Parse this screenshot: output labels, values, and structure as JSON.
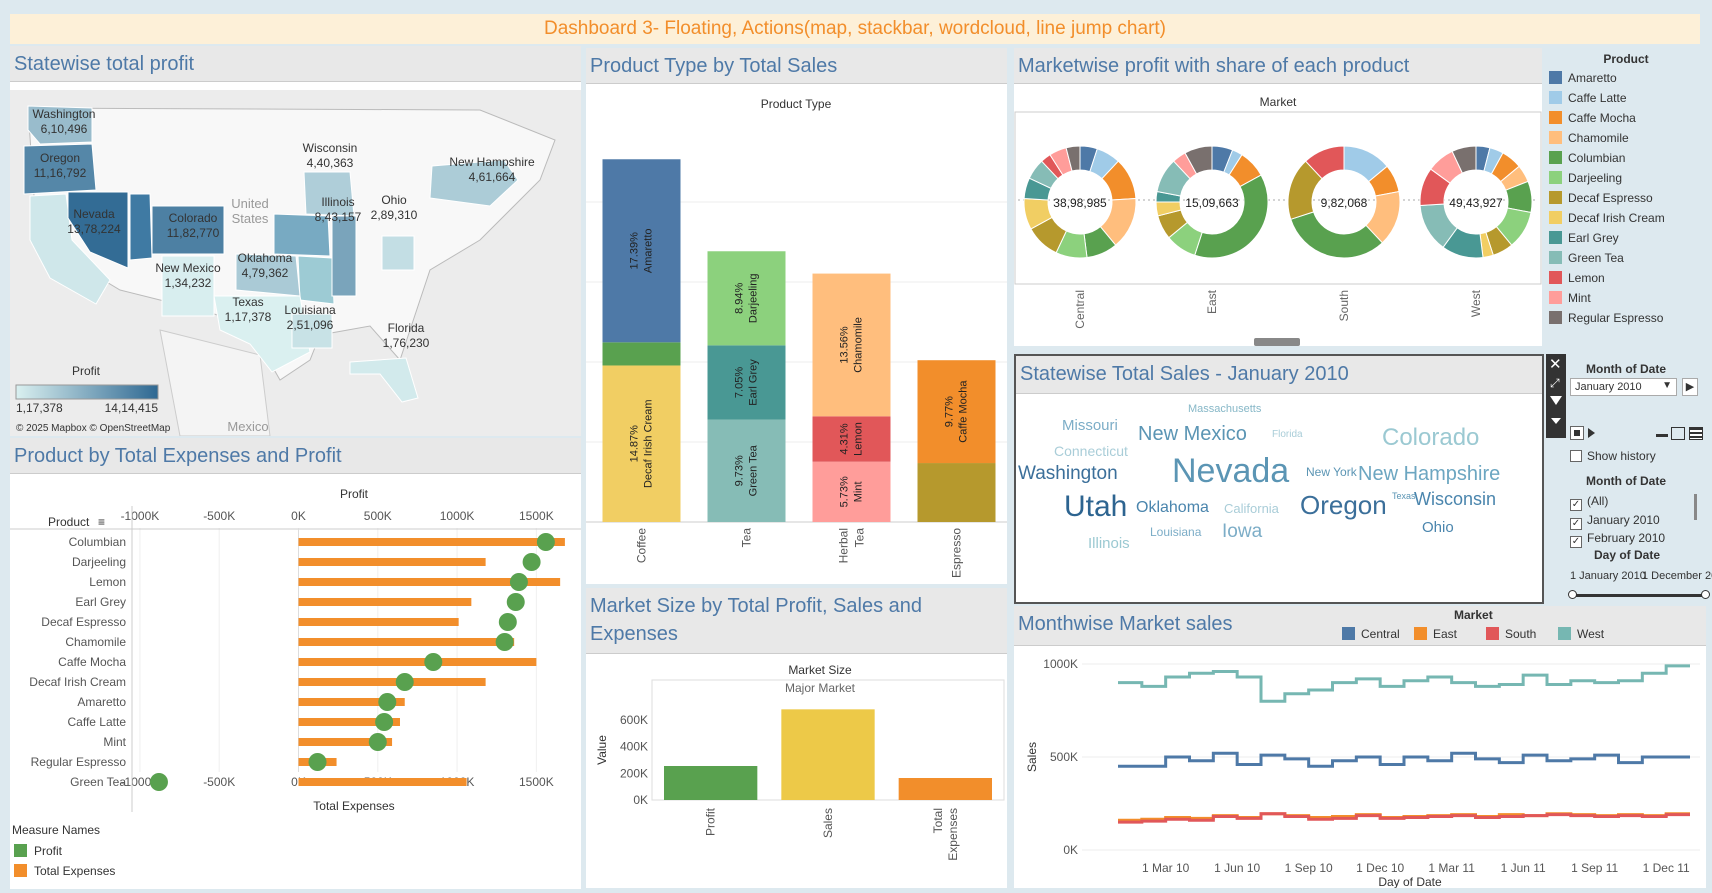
{
  "dashboard": {
    "title": "Dashboard 3- Floating, Actions(map, stackbar, wordcloud, line jump chart)"
  },
  "colors": {
    "Amaretto": "#4e79a7",
    "Caffe Latte": "#a0cbe8",
    "Caffe Mocha": "#f28e2b",
    "Chamomile": "#ffbe7d",
    "Columbian": "#59a14f",
    "Darjeeling": "#8cd17d",
    "Decaf Espresso": "#b6992d",
    "Decaf Irish Cream": "#f1ce63",
    "Earl Grey": "#499894",
    "Green Tea": "#86bcb6",
    "Lemon": "#e15759",
    "Mint": "#ff9d9a",
    "Regular Espresso": "#79706e",
    "Central": "#4e79a7",
    "East": "#f28e2b",
    "South": "#e15759",
    "West": "#76b7b2"
  },
  "map": {
    "title": "Statewise total profit",
    "legend_title": "Profit",
    "legend_min": "1,17,378",
    "legend_max": "14,14,415",
    "copyright": "© 2025 Mapbox © OpenStreetMap",
    "country_labels": [
      "United\nStates",
      "Mexico"
    ],
    "states": [
      {
        "name": "Washington",
        "value": "6,10,496",
        "profit": 610496
      },
      {
        "name": "Oregon",
        "value": "11,16,792",
        "profit": 1116792
      },
      {
        "name": "Nevada",
        "value": "13,78,224",
        "profit": 1378224
      },
      {
        "name": "Colorado",
        "value": "11,82,770",
        "profit": 1182770
      },
      {
        "name": "New Mexico",
        "value": "1,34,232",
        "profit": 134232
      },
      {
        "name": "Oklahoma",
        "value": "4,79,362",
        "profit": 479362
      },
      {
        "name": "Texas",
        "value": "1,17,378",
        "profit": 117378
      },
      {
        "name": "Louisiana",
        "value": "2,51,096",
        "profit": 251096
      },
      {
        "name": "Wisconsin",
        "value": "4,40,363",
        "profit": 440363
      },
      {
        "name": "Illinois",
        "value": "8,43,157",
        "profit": 843157
      },
      {
        "name": "Ohio",
        "value": "2,89,310",
        "profit": 289310
      },
      {
        "name": "New Hampshire",
        "value": "4,61,664",
        "profit": 461664
      },
      {
        "name": "Florida",
        "value": "1,76,230",
        "profit": 176230
      }
    ]
  },
  "chart_data": [
    {
      "id": "product_type",
      "type": "bar",
      "stacked": true,
      "title": "Product Type by Total Sales",
      "header": "Product Type",
      "categories": [
        "Coffee",
        "Tea",
        "Herbal Tea",
        "Espresso"
      ],
      "stacks": [
        {
          "category": "Coffee",
          "segments": [
            {
              "product": "Decaf Irish Cream",
              "share": 14.87,
              "label": "14.87%"
            },
            {
              "product": "Columbian",
              "share": 2.2,
              "label": ""
            },
            {
              "product": "Amaretto",
              "share": 17.39,
              "label": "17.39%"
            }
          ]
        },
        {
          "category": "Tea",
          "segments": [
            {
              "product": "Green Tea",
              "share": 9.73,
              "label": "9.73%"
            },
            {
              "product": "Earl Grey",
              "share": 7.05,
              "label": "7.05%"
            },
            {
              "product": "Darjeeling",
              "share": 8.94,
              "label": "8.94%"
            }
          ]
        },
        {
          "category": "Herbal Tea",
          "segments": [
            {
              "product": "Mint",
              "share": 5.73,
              "label": "5.73%"
            },
            {
              "product": "Lemon",
              "share": 4.31,
              "label": "4.31%"
            },
            {
              "product": "Chamomile",
              "share": 13.56,
              "label": "13.56%"
            }
          ]
        },
        {
          "category": "Espresso",
          "segments": [
            {
              "product": "Decaf Espresso",
              "share": 5.6,
              "label": ""
            },
            {
              "product": "Caffe Mocha",
              "share": 9.77,
              "label": "9.77%"
            }
          ]
        }
      ],
      "ylim": [
        0,
        38
      ]
    },
    {
      "id": "market_donuts",
      "type": "pie",
      "donut": true,
      "title": "Marketwise profit with share of each product",
      "header": "Market",
      "legend_title": "Product",
      "markets": [
        {
          "name": "Central",
          "total": "38,98,985",
          "slices": [
            {
              "product": "Amaretto",
              "value": 5
            },
            {
              "product": "Caffe Latte",
              "value": 7
            },
            {
              "product": "Caffe Mocha",
              "value": 12
            },
            {
              "product": "Chamomile",
              "value": 15
            },
            {
              "product": "Columbian",
              "value": 9
            },
            {
              "product": "Darjeeling",
              "value": 9
            },
            {
              "product": "Decaf Espresso",
              "value": 10
            },
            {
              "product": "Decaf Irish Cream",
              "value": 9
            },
            {
              "product": "Earl Grey",
              "value": 6
            },
            {
              "product": "Green Tea",
              "value": 6
            },
            {
              "product": "Lemon",
              "value": 3
            },
            {
              "product": "Mint",
              "value": 5
            },
            {
              "product": "Regular Espresso",
              "value": 4
            }
          ]
        },
        {
          "name": "East",
          "total": "15,09,663",
          "slices": [
            {
              "product": "Amaretto",
              "value": 6
            },
            {
              "product": "Caffe Latte",
              "value": 3
            },
            {
              "product": "Caffe Mocha",
              "value": 8
            },
            {
              "product": "Columbian",
              "value": 38
            },
            {
              "product": "Darjeeling",
              "value": 9
            },
            {
              "product": "Decaf Espresso",
              "value": 7
            },
            {
              "product": "Decaf Irish Cream",
              "value": 4
            },
            {
              "product": "Earl Grey",
              "value": 3
            },
            {
              "product": "Green Tea",
              "value": 10
            },
            {
              "product": "Mint",
              "value": 4
            },
            {
              "product": "Regular Espresso",
              "value": 8
            }
          ]
        },
        {
          "name": "South",
          "total": "9,82,068",
          "slices": [
            {
              "product": "Caffe Latte",
              "value": 14
            },
            {
              "product": "Caffe Mocha",
              "value": 8
            },
            {
              "product": "Chamomile",
              "value": 16
            },
            {
              "product": "Columbian",
              "value": 32
            },
            {
              "product": "Decaf Espresso",
              "value": 18
            },
            {
              "product": "Lemon",
              "value": 12
            }
          ]
        },
        {
          "name": "West",
          "total": "49,43,927",
          "slices": [
            {
              "product": "Amaretto",
              "value": 4
            },
            {
              "product": "Caffe Latte",
              "value": 4
            },
            {
              "product": "Caffe Mocha",
              "value": 6
            },
            {
              "product": "Chamomile",
              "value": 5
            },
            {
              "product": "Columbian",
              "value": 9
            },
            {
              "product": "Darjeeling",
              "value": 11
            },
            {
              "product": "Decaf Espresso",
              "value": 6
            },
            {
              "product": "Decaf Irish Cream",
              "value": 3
            },
            {
              "product": "Earl Grey",
              "value": 12
            },
            {
              "product": "Green Tea",
              "value": 14
            },
            {
              "product": "Lemon",
              "value": 11
            },
            {
              "product": "Mint",
              "value": 8
            },
            {
              "product": "Regular Espresso",
              "value": 7
            }
          ]
        }
      ]
    },
    {
      "id": "expenses_profit",
      "type": "bar",
      "orientation": "horizontal",
      "title": "Product by Total Expenses and Profit",
      "top_axis_label": "Profit",
      "xlabel": "Total Expenses",
      "row_header": "Product",
      "ticks": [
        "-1000K",
        "-500K",
        "0K",
        "500K",
        "1000K",
        "1500K"
      ],
      "xlim": [
        -1050000,
        1750000
      ],
      "legend_title": "Measure Names",
      "series": [
        {
          "name": "Profit",
          "color": "#59a14f",
          "mark": "circle"
        },
        {
          "name": "Total Expenses",
          "color": "#f28e2b",
          "mark": "bar"
        }
      ],
      "rows": [
        {
          "product": "Columbian",
          "expenses": 1680000,
          "profit": 1560000
        },
        {
          "product": "Darjeeling",
          "expenses": 1180000,
          "profit": 1470000
        },
        {
          "product": "Lemon",
          "expenses": 1650000,
          "profit": 1390000
        },
        {
          "product": "Earl Grey",
          "expenses": 1090000,
          "profit": 1370000
        },
        {
          "product": "Decaf Espresso",
          "expenses": 1010000,
          "profit": 1320000
        },
        {
          "product": "Chamomile",
          "expenses": 1360000,
          "profit": 1300000
        },
        {
          "product": "Caffe Mocha",
          "expenses": 1500000,
          "profit": 850000
        },
        {
          "product": "Decaf Irish Cream",
          "expenses": 1180000,
          "profit": 670000
        },
        {
          "product": "Amaretto",
          "expenses": 670000,
          "profit": 560000
        },
        {
          "product": "Caffe Latte",
          "expenses": 640000,
          "profit": 540000
        },
        {
          "product": "Mint",
          "expenses": 590000,
          "profit": 500000
        },
        {
          "product": "Regular Espresso",
          "expenses": 240000,
          "profit": 120000
        },
        {
          "product": "Green Tea",
          "expenses": 1060000,
          "profit": -880000
        }
      ]
    },
    {
      "id": "market_size",
      "type": "bar",
      "title": "Market Size by Total Profit, Sales and Expenses",
      "header": "Market Size",
      "subheader": "Major Market",
      "ylabel": "Value",
      "categories": [
        "Profit",
        "Sales",
        "Total Expenses"
      ],
      "values": [
        255000,
        680000,
        165000
      ],
      "colors": [
        "#59a14f",
        "#edc948",
        "#f28e2b"
      ],
      "yticks": [
        "0K",
        "200K",
        "400K",
        "600K"
      ],
      "ylim": [
        0,
        750000
      ]
    },
    {
      "id": "monthwise",
      "type": "line",
      "step": true,
      "title": "Monthwise Market sales",
      "legend_title": "Market",
      "xlabel": "Day of Date",
      "ylabel": "Sales",
      "yticks": [
        "0K",
        "500K",
        "1000K"
      ],
      "ylim": [
        0,
        1000000
      ],
      "xticks": [
        "1 Mar 10",
        "1 Jun 10",
        "1 Sep 10",
        "1 Dec 10",
        "1 Mar 11",
        "1 Jun 11",
        "1 Sep 11",
        "1 Dec 11"
      ],
      "months": [
        "Jan 10",
        "Feb 10",
        "Mar 10",
        "Apr 10",
        "May 10",
        "Jun 10",
        "Jul 10",
        "Aug 10",
        "Sep 10",
        "Oct 10",
        "Nov 10",
        "Dec 10",
        "Jan 11",
        "Feb 11",
        "Mar 11",
        "Apr 11",
        "May 11",
        "Jun 11",
        "Jul 11",
        "Aug 11",
        "Sep 11",
        "Oct 11",
        "Nov 11",
        "Dec 11"
      ],
      "series": [
        {
          "name": "Central",
          "values": [
            450000,
            450000,
            500000,
            480000,
            520000,
            460000,
            510000,
            490000,
            450000,
            480000,
            500000,
            460000,
            500000,
            480000,
            520000,
            490000,
            470000,
            510000,
            480000,
            490000,
            510000,
            470000,
            500000,
            500000
          ]
        },
        {
          "name": "East",
          "values": [
            160000,
            165000,
            175000,
            170000,
            185000,
            175000,
            195000,
            185000,
            175000,
            180000,
            190000,
            175000,
            180000,
            185000,
            190000,
            180000,
            190000,
            185000,
            195000,
            190000,
            185000,
            190000,
            185000,
            195000
          ]
        },
        {
          "name": "South",
          "values": [
            150000,
            155000,
            165000,
            160000,
            180000,
            170000,
            195000,
            180000,
            165000,
            170000,
            185000,
            170000,
            175000,
            180000,
            185000,
            175000,
            180000,
            185000,
            190000,
            185000,
            180000,
            185000,
            180000,
            190000
          ]
        },
        {
          "name": "West",
          "values": [
            900000,
            880000,
            930000,
            950000,
            960000,
            930000,
            800000,
            840000,
            860000,
            900000,
            920000,
            880000,
            910000,
            930000,
            900000,
            880000,
            890000,
            940000,
            890000,
            910000,
            900000,
            910000,
            950000,
            990000
          ]
        }
      ]
    }
  ],
  "wordcloud": {
    "title": "Statewise Total Sales - January 2010",
    "words": [
      {
        "text": "Massachusetts",
        "size": 11,
        "color": "#86b7c7"
      },
      {
        "text": "Missouri",
        "size": 15,
        "color": "#7cadc7"
      },
      {
        "text": "New Mexico",
        "size": 20,
        "color": "#5b95b4"
      },
      {
        "text": "Florida",
        "size": 10,
        "color": "#a9cdd8"
      },
      {
        "text": "Colorado",
        "size": 24,
        "color": "#9bc9d2"
      },
      {
        "text": "Connecticut",
        "size": 14,
        "color": "#a9cdd8"
      },
      {
        "text": "Washington",
        "size": 19,
        "color": "#3b6f9a"
      },
      {
        "text": "Nevada",
        "size": 34,
        "color": "#5b95b4"
      },
      {
        "text": "New York",
        "size": 12,
        "color": "#5b95b4"
      },
      {
        "text": "New Hampshire",
        "size": 20,
        "color": "#6ca6c1"
      },
      {
        "text": "Texas",
        "size": 9,
        "color": "#5b95b4"
      },
      {
        "text": "Utah",
        "size": 30,
        "color": "#2d6490"
      },
      {
        "text": "Oklahoma",
        "size": 16,
        "color": "#4a85ad"
      },
      {
        "text": "California",
        "size": 13,
        "color": "#a9cdd8"
      },
      {
        "text": "Oregon",
        "size": 26,
        "color": "#3b6f9a"
      },
      {
        "text": "Wisconsin",
        "size": 18,
        "color": "#4a85ad"
      },
      {
        "text": "Louisiana",
        "size": 12,
        "color": "#7cadc7"
      },
      {
        "text": "Iowa",
        "size": 19,
        "color": "#7cadc7"
      },
      {
        "text": "Ohio",
        "size": 15,
        "color": "#4a85ad"
      },
      {
        "text": "Illinois",
        "size": 15,
        "color": "#9bc9d2"
      }
    ]
  },
  "filters": {
    "month_label": "Month of Date",
    "month_selected": "January 2010",
    "show_history": "Show history",
    "month_list_label": "Month of Date",
    "month_options": [
      {
        "label": "(All)",
        "checked": true
      },
      {
        "label": "January 2010",
        "checked": true
      },
      {
        "label": "February 2010",
        "checked": true
      }
    ],
    "day_label": "Day of Date",
    "day_start": "1 January 2010",
    "day_end": "1 December 20"
  }
}
